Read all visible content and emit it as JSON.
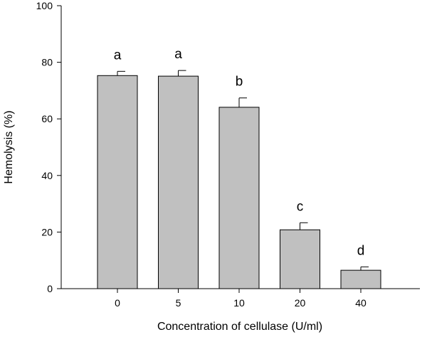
{
  "chart_data": {
    "type": "bar",
    "title": "",
    "xlabel": "Concentration of cellulase (U/ml)",
    "ylabel": "Hemolysis (%)",
    "ylim": [
      0,
      100
    ],
    "yticks": [
      0,
      20,
      40,
      60,
      80,
      100
    ],
    "categories": [
      "0",
      "5",
      "10",
      "20",
      "40"
    ],
    "values": [
      75.3,
      75.1,
      64.1,
      20.8,
      6.5
    ],
    "errors": [
      1.5,
      2.0,
      3.3,
      2.5,
      1.2
    ],
    "significance_labels": [
      "a",
      "a",
      "b",
      "c",
      "d"
    ],
    "bar_color": "#c0c0c0",
    "grid": false,
    "legend": "none"
  }
}
